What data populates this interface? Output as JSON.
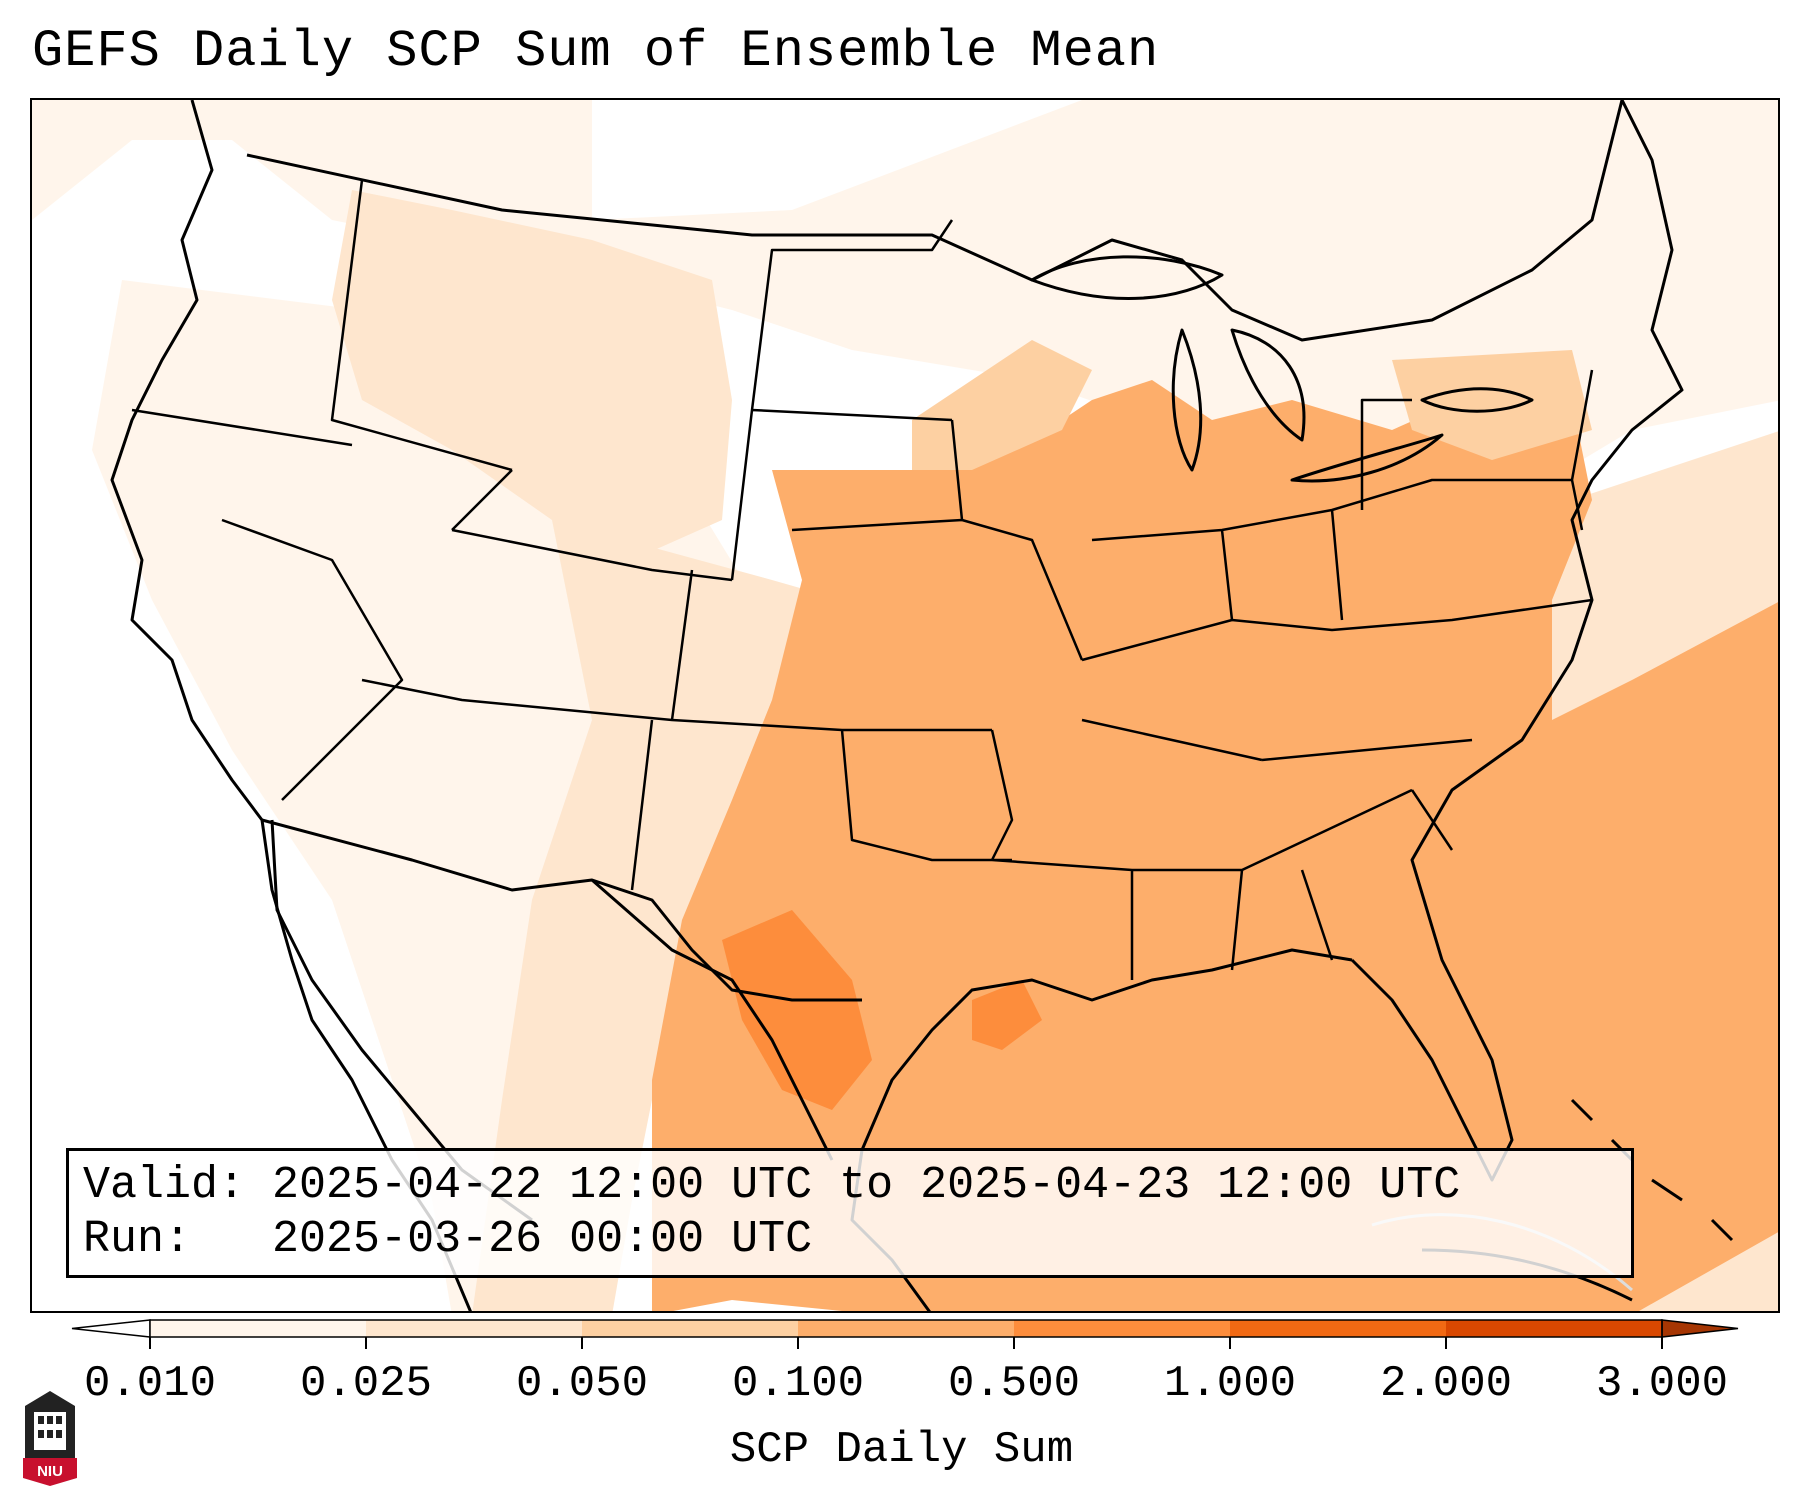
{
  "title": "GEFS Daily SCP Sum of Ensemble Mean",
  "info": {
    "valid_label": "Valid:",
    "valid_value": "2025-04-22 12:00 UTC to 2025-04-23 12:00 UTC",
    "run_label": "Run:",
    "run_value": "2025-03-26 00:00 UTC"
  },
  "colorbar": {
    "label": "SCP Daily Sum",
    "ticks": [
      "0.010",
      "0.025",
      "0.050",
      "0.100",
      "0.500",
      "1.000",
      "2.000",
      "3.000"
    ],
    "colors": [
      "#ffffff",
      "#fff5eb",
      "#fee6ce",
      "#fdd0a2",
      "#fdae6b",
      "#fd8d3c",
      "#f16913",
      "#d94801",
      "#a63603"
    ],
    "extend": "both"
  },
  "logo": {
    "text": "NIU"
  },
  "map_colors": {
    "level1": "#fff5eb",
    "level2": "#fee6ce",
    "level3": "#fdd0a2",
    "level4": "#fdae6b",
    "level5": "#fd8d3c",
    "outline": "#000000",
    "terrain_ghost": "#dddddd"
  }
}
